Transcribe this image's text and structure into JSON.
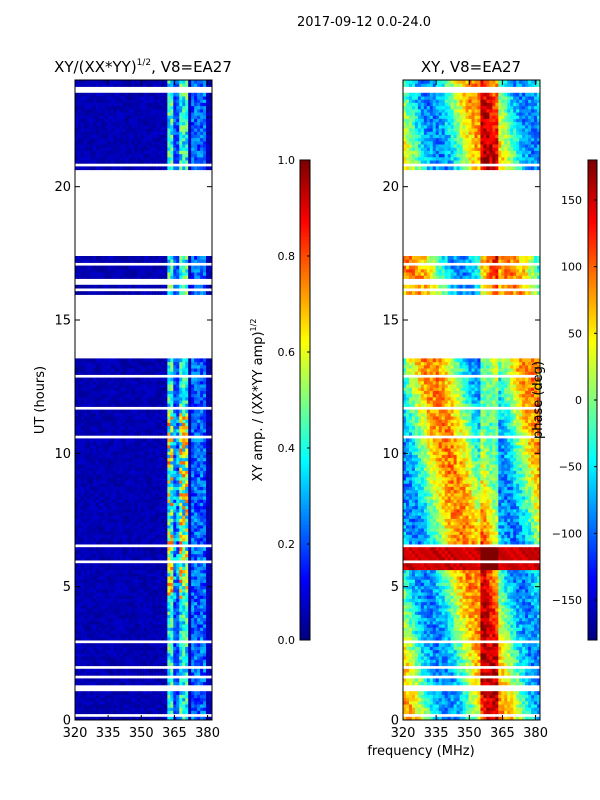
{
  "figure": {
    "suptitle": "2017-09-12 0.0-24.0",
    "shared_xlabel": "frequency (MHz)"
  },
  "chart_data": [
    {
      "type": "heatmap",
      "title_main": "XY/(XX*YY)",
      "title_exp": "1/2",
      "title_suffix": ", V8=EA27",
      "xlabel": "",
      "ylabel": "UT (hours)",
      "xlim": [
        320,
        382
      ],
      "ylim": [
        0,
        24
      ],
      "xticks": [
        320,
        335,
        350,
        365,
        380
      ],
      "yticks": [
        0,
        5,
        10,
        15,
        20
      ],
      "colormap": "jet",
      "colorbar": {
        "label_main": "XY amp. / (XX*YY amp)",
        "label_exp": "1/2",
        "range": [
          0.0,
          1.0
        ],
        "ticks": [
          "0.0",
          "0.2",
          "0.4",
          "0.6",
          "0.8",
          "1.0"
        ],
        "tick_values": [
          0.0,
          0.2,
          0.4,
          0.6,
          0.8,
          1.0
        ]
      },
      "data_gaps_hours": [
        [
          16.3,
          16.5
        ],
        [
          17.3,
          20.6
        ],
        [
          13.5,
          15.9
        ]
      ],
      "description": "Mostly low normalized amplitude (~0.0-0.1) with bright channels near 362-370 MHz reaching ~0.6-1.0 between 5-11 UT"
    },
    {
      "type": "heatmap",
      "title": "XY, V8=EA27",
      "xlabel": "",
      "ylabel": "",
      "xlim": [
        320,
        382
      ],
      "ylim": [
        0,
        24
      ],
      "xticks": [
        320,
        335,
        350,
        365,
        380
      ],
      "yticks": [
        0,
        5,
        10,
        15,
        20
      ],
      "colormap": "jet",
      "colorbar": {
        "label": "phase (deg)",
        "range": [
          -180,
          180
        ],
        "ticks": [
          "−150",
          "−100",
          "−50",
          "0",
          "50",
          "100",
          "150"
        ],
        "tick_values": [
          -150,
          -100,
          -50,
          0,
          50,
          100,
          150
        ]
      },
      "data_gaps_hours": [
        [
          16.3,
          16.5
        ],
        [
          17.3,
          20.6
        ],
        [
          13.5,
          15.9
        ]
      ],
      "description": "XY phase in degrees, varying across frequency with banded structure; strong red band near 6 UT"
    }
  ]
}
